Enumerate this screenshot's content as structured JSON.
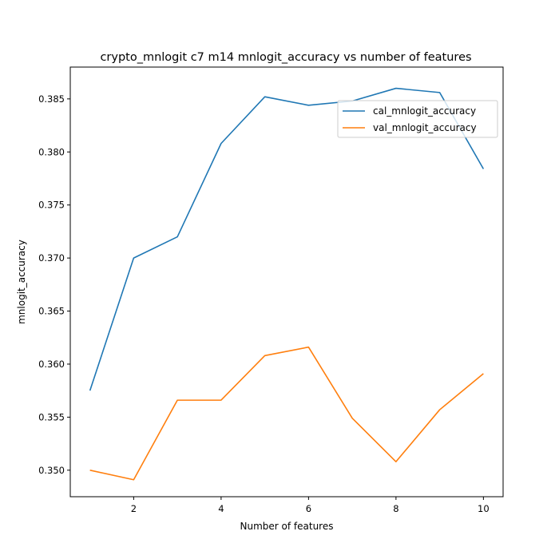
{
  "chart_data": {
    "type": "line",
    "title": "crypto_mnlogit c7 m14 mnlogit_accuracy vs number of features",
    "xlabel": "Number of features",
    "ylabel": "mnlogit_accuracy",
    "x": [
      1,
      2,
      3,
      4,
      5,
      6,
      7,
      8,
      9,
      10
    ],
    "xlim": [
      0.55,
      10.45
    ],
    "ylim": [
      0.3475,
      0.388
    ],
    "xticks": [
      2,
      4,
      6,
      8,
      10
    ],
    "xtick_labels": [
      "2",
      "4",
      "6",
      "8",
      "10"
    ],
    "yticks": [
      0.35,
      0.355,
      0.36,
      0.365,
      0.37,
      0.375,
      0.38,
      0.385
    ],
    "ytick_labels": [
      "0.350",
      "0.355",
      "0.360",
      "0.365",
      "0.370",
      "0.375",
      "0.380",
      "0.385"
    ],
    "grid": false,
    "legend_position": "top-right",
    "series": [
      {
        "name": "cal_mnlogit_accuracy",
        "color": "#1f77b4",
        "values": [
          0.3575,
          0.37,
          0.372,
          0.3808,
          0.3852,
          0.3844,
          0.3848,
          0.386,
          0.3856,
          0.3784
        ]
      },
      {
        "name": "val_mnlogit_accuracy",
        "color": "#ff7f0e",
        "values": [
          0.35,
          0.3491,
          0.3566,
          0.3566,
          0.3608,
          0.3616,
          0.3549,
          0.3508,
          0.3557,
          0.3591
        ]
      }
    ]
  }
}
